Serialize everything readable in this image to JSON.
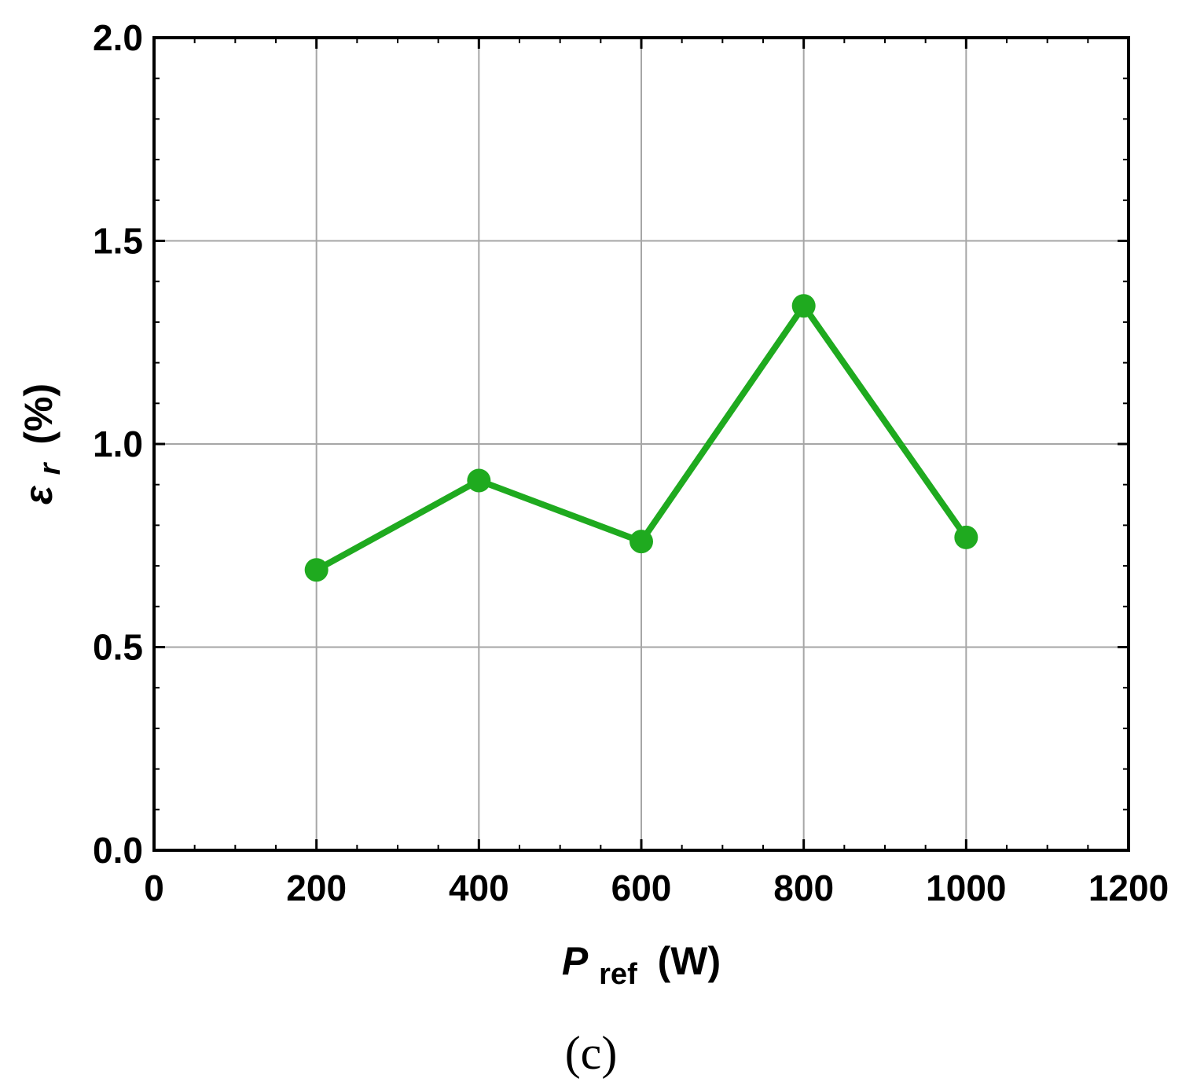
{
  "chart_data": {
    "type": "line",
    "title": "",
    "xlabel": {
      "symbol": "P",
      "subscript": "ref",
      "unit": "(W)"
    },
    "ylabel": {
      "symbol": "ε",
      "subscript": "r",
      "unit": "(%)"
    },
    "xlim": [
      0,
      1200
    ],
    "ylim": [
      0,
      2.0
    ],
    "xticks": [
      "0",
      "200",
      "400",
      "600",
      "800",
      "1000",
      "1200"
    ],
    "yticks": [
      "0.0",
      "0.5",
      "1.0",
      "1.5",
      "2.0"
    ],
    "grid": true,
    "series": [
      {
        "color": "#1faa1f",
        "x": [
          200,
          400,
          600,
          800,
          1000
        ],
        "y": [
          0.69,
          0.91,
          0.76,
          1.34,
          0.77
        ]
      }
    ],
    "panel_label": "(c)"
  }
}
